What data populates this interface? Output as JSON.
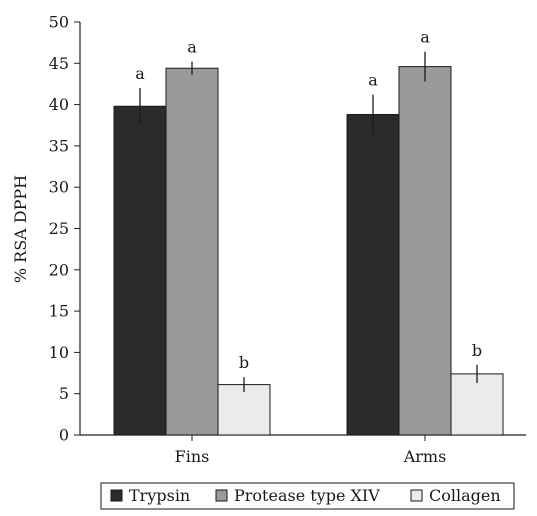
{
  "chart_data": {
    "type": "bar",
    "title": "",
    "xlabel": "",
    "ylabel": "% RSA DPPH",
    "ylim": [
      0,
      50
    ],
    "yticks": [
      0,
      5,
      10,
      15,
      20,
      25,
      30,
      35,
      40,
      45,
      50
    ],
    "grid": false,
    "legend_position": "bottom",
    "categories": [
      "Fins",
      "Arms"
    ],
    "series": [
      {
        "name": "Trypsin",
        "color": "#2b2b2b",
        "values": [
          39.8,
          38.8
        ],
        "errors": [
          2.2,
          2.4
        ],
        "labels": [
          "a",
          "a"
        ]
      },
      {
        "name": "Protease type XIV",
        "color": "#9a9a9a",
        "values": [
          44.4,
          44.6
        ],
        "errors": [
          0.8,
          1.8
        ],
        "labels": [
          "a",
          "a"
        ]
      },
      {
        "name": "Collagen",
        "color": "#ebebeb",
        "values": [
          6.1,
          7.4
        ],
        "errors": [
          0.9,
          1.1
        ],
        "labels": [
          "b",
          "b"
        ]
      }
    ]
  }
}
